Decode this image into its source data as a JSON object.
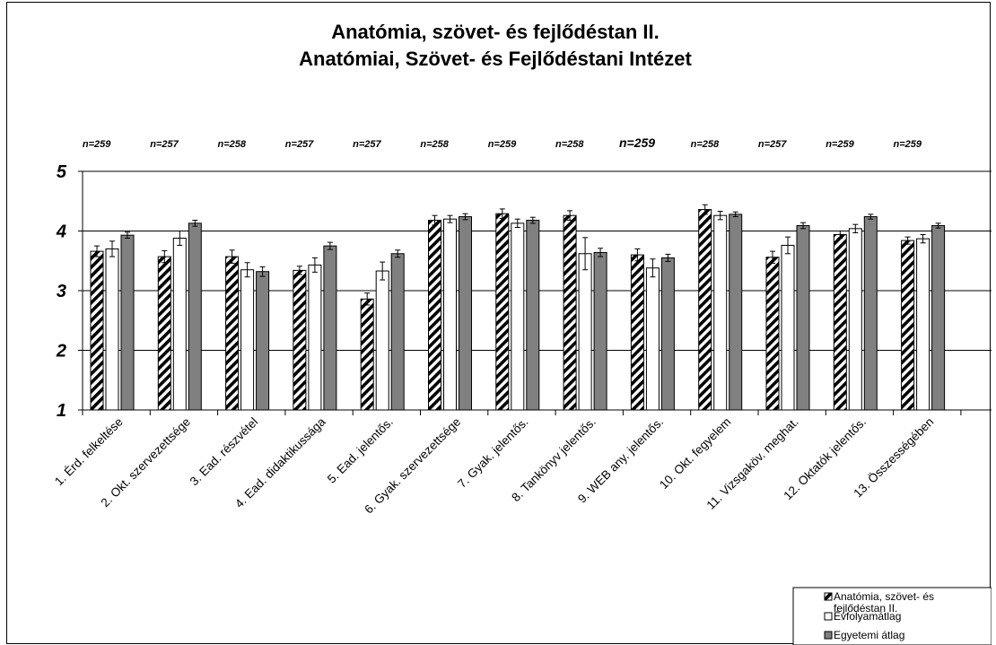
{
  "chart_data": {
    "type": "bar",
    "title_lines": [
      "Anatómia, szövet- és fejlődéstan II.",
      "Anatómiai, Szövet- és Fejlődéstani Intézet"
    ],
    "categories": [
      "1. Érd. felkeltése",
      "2. Okt. szervezettsége",
      "3. Ead. részvétel",
      "4. Ead. didaktikussága",
      "5. Ead. jelentős.",
      "6. Gyak. szervezettsége",
      "7. Gyak. jelentős.",
      "8. Tankönyv jelentős.",
      "9. WEB any. jelentős.",
      "10. Okt. fegyelem",
      "11. Vizsgaköv. meghat.",
      "12. Oktatók jelentős.",
      "13. Összességében"
    ],
    "n_labels": [
      "n=259",
      "n=257",
      "n=258",
      "n=257",
      "n=257",
      "n=258",
      "n=259",
      "n=258",
      "n=259",
      "n=258",
      "n=257",
      "n=259",
      "n=259"
    ],
    "series": [
      {
        "name": "Anatómia, szövet- és fejlődéstan II.",
        "fill": "hatched",
        "values": [
          3.66,
          3.57,
          3.57,
          3.34,
          2.86,
          4.18,
          4.29,
          4.26,
          3.6,
          4.36,
          3.56,
          3.94,
          3.84
        ],
        "errors": [
          0.09,
          0.1,
          0.11,
          0.07,
          0.1,
          0.08,
          0.08,
          0.08,
          0.1,
          0.08,
          0.1,
          0.06,
          0.06
        ]
      },
      {
        "name": "Évfolyamátlag",
        "fill": "#ffffff",
        "values": [
          3.7,
          3.88,
          3.35,
          3.43,
          3.33,
          4.2,
          4.13,
          3.62,
          3.38,
          4.26,
          3.76,
          4.04,
          3.87
        ],
        "errors": [
          0.13,
          0.12,
          0.12,
          0.12,
          0.15,
          0.06,
          0.07,
          0.27,
          0.15,
          0.07,
          0.14,
          0.07,
          0.07
        ]
      },
      {
        "name": "Egyetemi átlag",
        "fill": "#808080",
        "values": [
          3.93,
          4.13,
          3.32,
          3.75,
          3.62,
          4.24,
          4.18,
          3.64,
          3.55,
          4.28,
          4.09,
          4.24,
          4.09
        ],
        "errors": [
          0.05,
          0.05,
          0.08,
          0.06,
          0.06,
          0.05,
          0.05,
          0.07,
          0.06,
          0.04,
          0.05,
          0.04,
          0.04
        ]
      }
    ],
    "ylim": [
      1,
      5
    ],
    "yticks": [
      1,
      2,
      3,
      4,
      5
    ],
    "grid": true,
    "legend_position": "bottom-right"
  }
}
